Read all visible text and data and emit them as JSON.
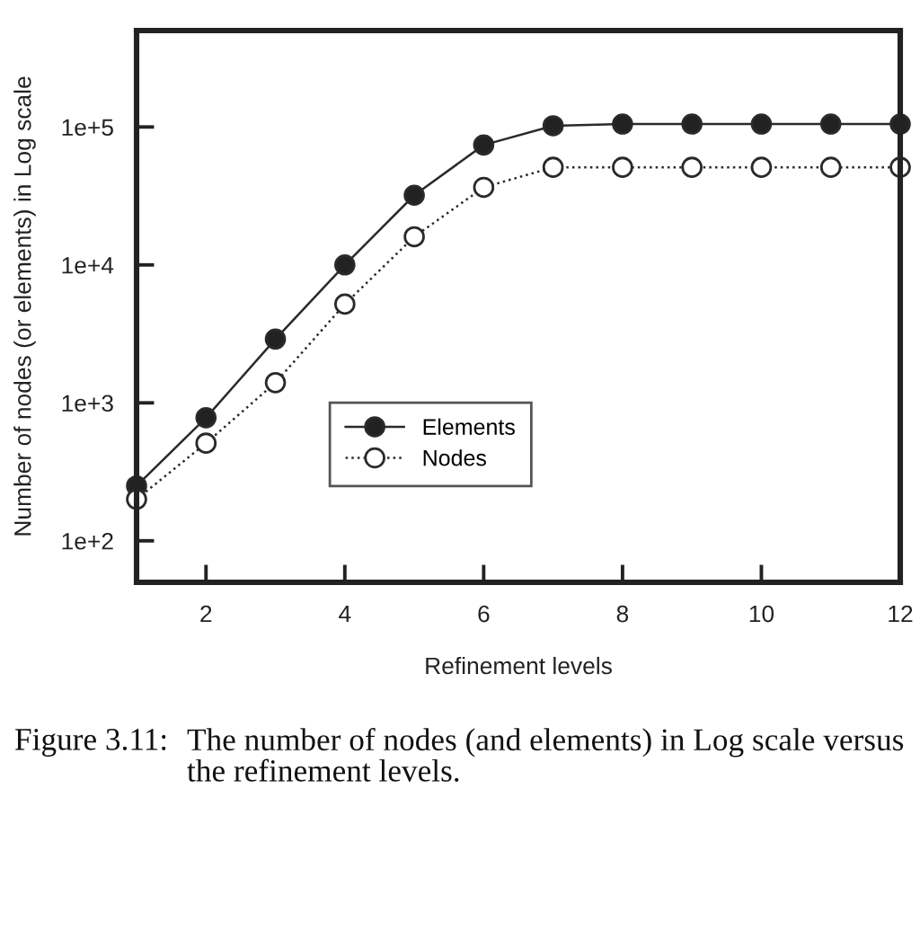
{
  "chart_data": {
    "type": "line",
    "xlabel": "Refinement levels",
    "ylabel": "Number of nodes (or elements) in Log scale",
    "annotations": [
      "Figure 3.11:",
      "The number of nodes (and elements) in Log scale versus the refinement levels."
    ],
    "x": [
      1,
      2,
      3,
      4,
      5,
      6,
      7,
      8,
      9,
      10,
      11,
      12
    ],
    "series": [
      {
        "name": "Elements",
        "color": "#222222",
        "line_style": "solid",
        "values": [
          250,
          780,
          2900,
          10000,
          32000,
          74000,
          102000,
          105000,
          105000,
          105000,
          105000,
          105000
        ]
      },
      {
        "name": "Nodes",
        "color": "#ffffff",
        "line_style": "dotted",
        "values": [
          200,
          510,
          1400,
          5200,
          16000,
          36500,
          51000,
          51000,
          51000,
          51000,
          51000,
          51000
        ]
      }
    ],
    "log": "y",
    "xlim": [
      1,
      12
    ],
    "xticks": [
      2,
      4,
      6,
      8,
      10,
      12
    ],
    "ylim": [
      50,
      500000
    ],
    "yticks": [
      {
        "value": 100,
        "label": "1e+2"
      },
      {
        "value": 1000,
        "label": "1e+3"
      },
      {
        "value": 10000,
        "label": "1e+4"
      },
      {
        "value": 100000,
        "label": "1e+5"
      }
    ],
    "legend": "bottom",
    "marker": "circle"
  }
}
